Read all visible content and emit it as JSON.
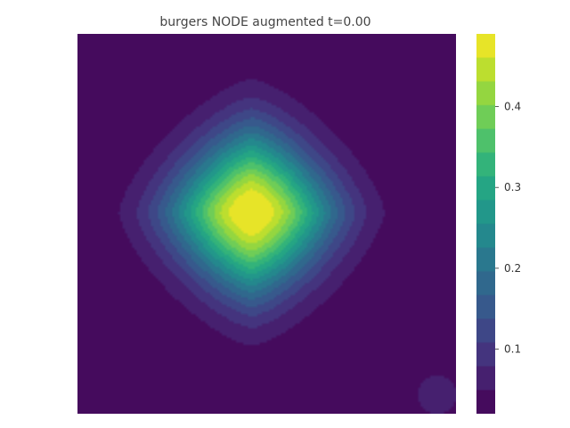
{
  "chart_data": {
    "type": "heatmap",
    "title": "burgers NODE augmented t=0.00",
    "xlabel": "",
    "ylabel": "",
    "colormap": "viridis",
    "field": {
      "description_shape": "smooth single peak with diamond-shaped rounded level sets, discretized into color bands",
      "peak_value": 0.5,
      "peak_location": [
        0.46,
        0.47
      ],
      "background_value": 0.02,
      "secondary_blob": {
        "location": [
          0.95,
          0.95
        ],
        "value": 0.06
      }
    },
    "colorbar": {
      "range": [
        0.02,
        0.49
      ],
      "ticks": [
        0.1,
        0.2,
        0.3,
        0.4
      ],
      "tick_labels": [
        "0.1",
        "0.2",
        "0.3",
        "0.4"
      ],
      "levels": 16
    },
    "grid": false,
    "legend": "none"
  }
}
